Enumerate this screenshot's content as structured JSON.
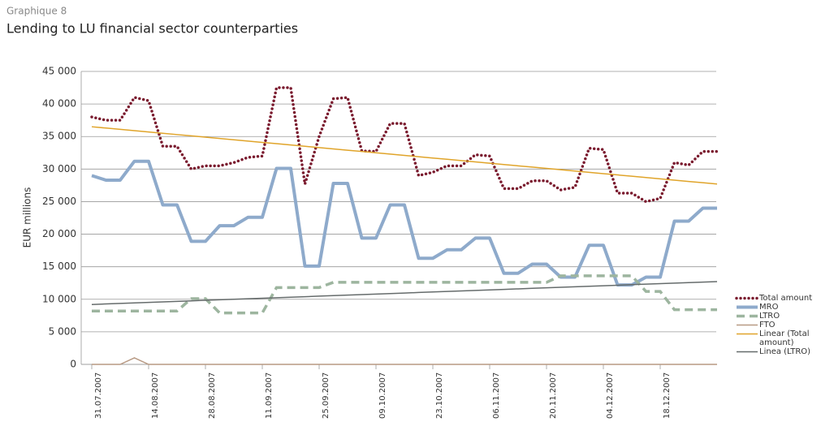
{
  "chart_data": {
    "type": "line",
    "subtitle": "Graphique 8",
    "title": "Lending to LU financial sector counterparties",
    "ylabel": "EUR millions",
    "ylim": [
      0,
      45000
    ],
    "yticks": [
      0,
      {
        "value": 5000,
        "label": "5 000"
      },
      {
        "value": 10000,
        "label": "10 000"
      },
      {
        "value": 15000,
        "label": "15 000"
      },
      {
        "value": 20000,
        "label": "20 000"
      },
      {
        "value": 25000,
        "label": "25 000"
      },
      {
        "value": 30000,
        "label": "30 000"
      },
      {
        "value": 35000,
        "label": "35 000"
      },
      {
        "value": 40000,
        "label": "40 000"
      },
      {
        "value": 45000,
        "label": "45 000"
      }
    ],
    "grid": true,
    "legend": "right",
    "categories": [
      "31.07.2007",
      null,
      null,
      null,
      "14.08.2007",
      null,
      null,
      null,
      "28.08.2007",
      null,
      null,
      null,
      "11.09.2007",
      null,
      null,
      null,
      "25.09.2007",
      null,
      null,
      null,
      "09.10.2007",
      null,
      null,
      null,
      "23.10.2007",
      null,
      null,
      null,
      "06.11.2007",
      null,
      null,
      null,
      "20.11.2007",
      null,
      null,
      null,
      "04.12.2007",
      null,
      null,
      null,
      "18.12.2007",
      null,
      null,
      null,
      null
    ],
    "series": [
      {
        "name": "Total amount",
        "color": "#7a1a2e",
        "style": "dotted",
        "values": [
          38000,
          37500,
          37500,
          41000,
          40500,
          33500,
          33500,
          30000,
          30500,
          30500,
          31000,
          31800,
          32000,
          42500,
          42500,
          27700,
          35000,
          40800,
          41000,
          32800,
          32700,
          37000,
          37000,
          29000,
          29500,
          30500,
          30500,
          32200,
          32000,
          27000,
          27000,
          28200,
          28200,
          26800,
          27200,
          33200,
          33000,
          26300,
          26300,
          25000,
          25500,
          31000,
          30600,
          32700,
          32700
        ]
      },
      {
        "name": "MRO",
        "color": "#8eaacb",
        "style": "thick",
        "values": [
          29000,
          28300,
          28300,
          31200,
          31200,
          24500,
          24500,
          18900,
          18900,
          21300,
          21300,
          22600,
          22600,
          30100,
          30100,
          15100,
          15100,
          27800,
          27800,
          19400,
          19400,
          24500,
          24500,
          16300,
          16300,
          17600,
          17600,
          19400,
          19400,
          14000,
          14000,
          15400,
          15400,
          13400,
          13400,
          18300,
          18300,
          12200,
          12200,
          13400,
          13400,
          22000,
          22000,
          24000,
          24000
        ]
      },
      {
        "name": "LTRO",
        "color": "#9db59f",
        "style": "dashed",
        "values": [
          8200,
          8200,
          8200,
          8200,
          8200,
          8200,
          8200,
          10100,
          10100,
          7900,
          7900,
          7900,
          7900,
          11800,
          11800,
          11800,
          11800,
          12600,
          12600,
          12600,
          12600,
          12600,
          12600,
          12600,
          12600,
          12600,
          12600,
          12600,
          12600,
          12600,
          12600,
          12600,
          12600,
          13600,
          13600,
          13600,
          13600,
          13600,
          13600,
          11200,
          11200,
          8400,
          8400,
          8400,
          8400
        ]
      },
      {
        "name": "FTO",
        "color": "#b89a84",
        "style": "thin",
        "values": [
          0,
          0,
          0,
          1000,
          0,
          0,
          0,
          0,
          0,
          0,
          0,
          0,
          0,
          0,
          0,
          0,
          0,
          0,
          0,
          0,
          0,
          0,
          0,
          0,
          0,
          0,
          0,
          0,
          0,
          0,
          0,
          0,
          0,
          0,
          0,
          0,
          0,
          0,
          0,
          0,
          0,
          0,
          0,
          0,
          0
        ]
      },
      {
        "name": "Linear (Total amount)",
        "color": "#e0a42a",
        "style": "thin",
        "values": [
          36500,
          36300,
          36100,
          35900,
          35700,
          35500,
          35300,
          35100,
          34900,
          34700,
          34500,
          34300,
          34100,
          33900,
          33700,
          33500,
          33300,
          33100,
          32900,
          32700,
          32500,
          32300,
          32100,
          31900,
          31700,
          31500,
          31300,
          31100,
          30900,
          30700,
          30500,
          30300,
          30100,
          29900,
          29700,
          29500,
          29300,
          29100,
          28900,
          28700,
          28500,
          28300,
          28100,
          27900,
          27700
        ]
      },
      {
        "name": "Linea (LTRO)",
        "color": "#666c6c",
        "style": "thin",
        "values": [
          9200,
          9280,
          9360,
          9440,
          9520,
          9600,
          9680,
          9760,
          9840,
          9920,
          10000,
          10080,
          10160,
          10240,
          10320,
          10400,
          10480,
          10560,
          10640,
          10720,
          10800,
          10880,
          10960,
          11040,
          11120,
          11200,
          11280,
          11360,
          11440,
          11520,
          11600,
          11680,
          11760,
          11840,
          11920,
          12000,
          12080,
          12160,
          12240,
          12320,
          12400,
          12480,
          12560,
          12640,
          12720
        ]
      }
    ]
  }
}
